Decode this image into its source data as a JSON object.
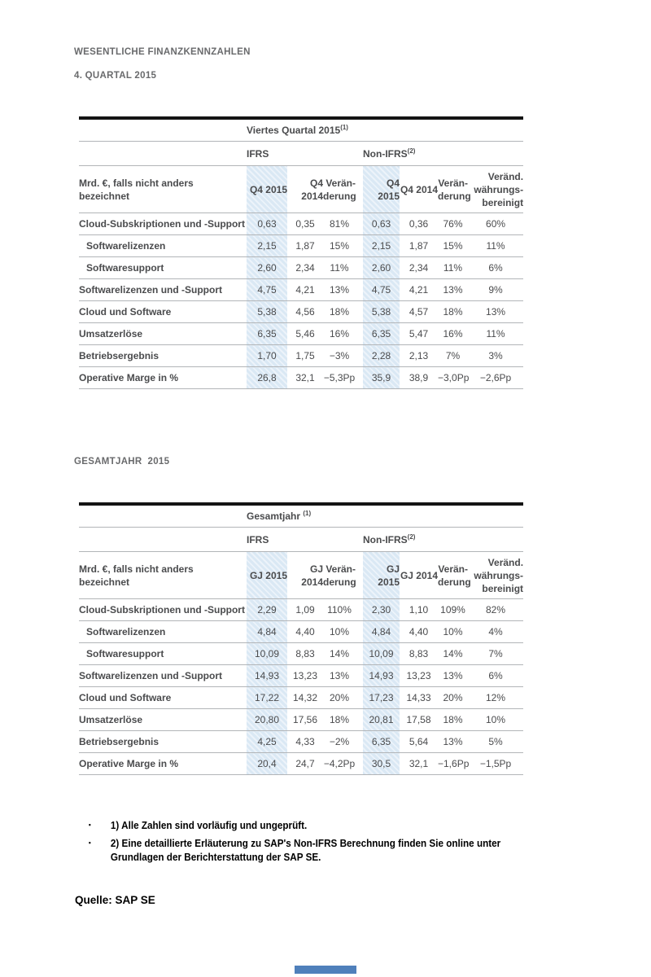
{
  "page": {
    "title": "WESENTLICHE FINANZKENNZAHLEN",
    "subtitle_q4": "4. QUARTAL 2015",
    "subtitle_fy": "GESAMTJAHR  2015",
    "source": "Quelle: SAP SE"
  },
  "colors": {
    "heading_gray": "#696a6c",
    "table_text": "#4a4b4d",
    "row_line": "#b2b5b8",
    "table_top_border": "#141414",
    "highlight_base": "#dae8f4",
    "highlight_stripe": "#ecf3fa",
    "footer_bar_blue": "#4f80bb"
  },
  "tables": [
    {
      "title": "Viertes Quartal 2015",
      "title_footnote_ref": "(1)",
      "groups": [
        {
          "label": "IFRS",
          "footnote_ref": ""
        },
        {
          "label": "Non-IFRS",
          "footnote_ref": "(2)"
        }
      ],
      "unit_label": "Mrd. €, falls nicht anders bezeichnet",
      "column_headers": [
        "Q4 2015",
        "Q4 2014",
        "Verän-\nderung",
        "Q4 2015",
        "Q4 2014",
        "Verän-\nderung",
        "Veränd.\nwährungs-\nbereinigt"
      ],
      "rows": [
        {
          "label": "Cloud-Subskriptionen und -Support",
          "indent": false,
          "values": [
            "0,63",
            "0,35",
            "81%",
            "0,63",
            "0,36",
            "76%",
            "60%"
          ]
        },
        {
          "label": "Softwarelizenzen",
          "indent": true,
          "values": [
            "2,15",
            "1,87",
            "15%",
            "2,15",
            "1,87",
            "15%",
            "11%"
          ]
        },
        {
          "label": "Softwaresupport",
          "indent": true,
          "values": [
            "2,60",
            "2,34",
            "11%",
            "2,60",
            "2,34",
            "11%",
            "6%"
          ]
        },
        {
          "label": "Softwarelizenzen und -Support",
          "indent": false,
          "values": [
            "4,75",
            "4,21",
            "13%",
            "4,75",
            "4,21",
            "13%",
            "9%"
          ]
        },
        {
          "label": "Cloud und Software",
          "indent": false,
          "values": [
            "5,38",
            "4,56",
            "18%",
            "5,38",
            "4,57",
            "18%",
            "13%"
          ]
        },
        {
          "label": "Umsatzerlöse",
          "indent": false,
          "values": [
            "6,35",
            "5,46",
            "16%",
            "6,35",
            "5,47",
            "16%",
            "11%"
          ]
        },
        {
          "label": "Betriebsergebnis",
          "indent": false,
          "values": [
            "1,70",
            "1,75",
            "−3%",
            "2,28",
            "2,13",
            "7%",
            "3%"
          ]
        },
        {
          "label": "Operative Marge in %",
          "indent": false,
          "values": [
            "26,8",
            "32,1",
            "−5,3Pp",
            "35,9",
            "38,9",
            "−3,0Pp",
            "−2,6Pp"
          ]
        }
      ]
    },
    {
      "title": "Gesamtjahr ",
      "title_footnote_ref": "(1)",
      "groups": [
        {
          "label": "IFRS",
          "footnote_ref": ""
        },
        {
          "label": "Non-IFRS",
          "footnote_ref": "(2)"
        }
      ],
      "unit_label": "Mrd. €, falls nicht anders bezeichnet",
      "column_headers": [
        "GJ 2015",
        "GJ 2014",
        "Verän-\nderung",
        "GJ 2015",
        "GJ 2014",
        "Verän-\nderung",
        "Veränd.\nwährungs-\nbereinigt"
      ],
      "rows": [
        {
          "label": "Cloud-Subskriptionen und -Support",
          "indent": false,
          "values": [
            "2,29",
            "1,09",
            "110%",
            "2,30",
            "1,10",
            "109%",
            "82%"
          ]
        },
        {
          "label": "Softwarelizenzen",
          "indent": true,
          "values": [
            "4,84",
            "4,40",
            "10%",
            "4,84",
            "4,40",
            "10%",
            "4%"
          ]
        },
        {
          "label": "Softwaresupport",
          "indent": true,
          "values": [
            "10,09",
            "8,83",
            "14%",
            "10,09",
            "8,83",
            "14%",
            "7%"
          ]
        },
        {
          "label": "Softwarelizenzen und -Support",
          "indent": false,
          "values": [
            "14,93",
            "13,23",
            "13%",
            "14,93",
            "13,23",
            "13%",
            "6%"
          ]
        },
        {
          "label": "Cloud und Software",
          "indent": false,
          "values": [
            "17,22",
            "14,32",
            "20%",
            "17,23",
            "14,33",
            "20%",
            "12%"
          ]
        },
        {
          "label": "Umsatzerlöse",
          "indent": false,
          "values": [
            "20,80",
            "17,56",
            "18%",
            "20,81",
            "17,58",
            "18%",
            "10%"
          ]
        },
        {
          "label": "Betriebsergebnis",
          "indent": false,
          "values": [
            "4,25",
            "4,33",
            "−2%",
            "6,35",
            "5,64",
            "13%",
            "5%"
          ]
        },
        {
          "label": "Operative Marge in %",
          "indent": false,
          "values": [
            "20,4",
            "24,7",
            "−4,2Pp",
            "30,5",
            "32,1",
            "−1,6Pp",
            "−1,5Pp"
          ]
        }
      ]
    }
  ],
  "footnotes": {
    "items": [
      "1) Alle Zahlen sind vorläufig und ungeprüft.",
      "2) Eine detaillierte Erläuterung zu SAP's Non-IFRS Berechnung finden Sie online unter\nGrundlagen der Berichterstattung der SAP SE."
    ]
  }
}
